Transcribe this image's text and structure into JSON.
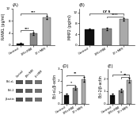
{
  "chart_data": [
    {
      "type": "bar",
      "title": "(A)",
      "ylabel": "RANKL (pg/ml)",
      "categories": [
        "Control",
        "LM+MM",
        "LY+MM"
      ],
      "values": [
        0.6,
        3.8,
        9.0
      ],
      "errors": [
        0.15,
        0.35,
        0.55
      ],
      "colors": [
        "#111111",
        "#888888",
        "#aaaaaa"
      ],
      "ylim": [
        0,
        12
      ],
      "yticks": [
        0,
        4,
        8,
        12
      ],
      "grid": false,
      "annotations": [
        {
          "from": "Control",
          "to": "LM+MM",
          "y": 4.8,
          "label": "***"
        },
        {
          "from": "Control",
          "to": "LY+MM",
          "y": 10.2,
          "label": "***"
        }
      ]
    },
    {
      "type": "bar",
      "title": "(B)",
      "ylabel": "MMP2 (pg/ml)",
      "categories": [
        "Control",
        "LM+MM",
        "LY+MM"
      ],
      "values": [
        5.8,
        6.0,
        9.5
      ],
      "errors": [
        0.35,
        0.4,
        0.5
      ],
      "colors": [
        "#111111",
        "#888888",
        "#aaaaaa"
      ],
      "ylim": [
        0,
        13.5
      ],
      "yticks": [
        0,
        4,
        8,
        12
      ],
      "grid": false,
      "annotations": [
        {
          "from": "LM+MM",
          "to": "LY+MM",
          "y": 10.5,
          "label": "****"
        },
        {
          "from": "Control",
          "to": "LY+MM",
          "y": 11.5,
          "label": "LY S"
        }
      ]
    },
    {
      "type": "blot",
      "categories": [
        "Control",
        "LM+MM",
        "LY+MM"
      ],
      "rows": [
        "Bcl-xL",
        "Bcl-2",
        "β-actin"
      ],
      "colors": [
        "#505050",
        "#606060",
        "#707070"
      ]
    },
    {
      "type": "bar",
      "title": "(D)",
      "ylabel": "Bcl-xL/β-actin",
      "categories": [
        "Control",
        "LM+MM",
        "LY+MM"
      ],
      "values": [
        0.75,
        1.35,
        2.1
      ],
      "errors": [
        0.1,
        0.14,
        0.2
      ],
      "colors": [
        "#111111",
        "#888888",
        "#aaaaaa"
      ],
      "ylim": [
        0,
        3.0
      ],
      "yticks": [
        0,
        1,
        2,
        3
      ],
      "grid": false,
      "annotations": [
        {
          "from": "Control",
          "to": "LM+MM",
          "y": 1.65,
          "label": "*"
        },
        {
          "from": "Control",
          "to": "LY+MM",
          "y": 2.45,
          "label": "**"
        }
      ]
    },
    {
      "type": "bar",
      "title": "(E)",
      "ylabel": "Bcl-2/β-actin",
      "categories": [
        "Control",
        "LM+MM",
        "LY+MM"
      ],
      "values": [
        0.7,
        1.05,
        1.9
      ],
      "errors": [
        0.09,
        0.12,
        0.18
      ],
      "colors": [
        "#111111",
        "#888888",
        "#aaaaaa"
      ],
      "ylim": [
        0,
        2.8
      ],
      "yticks": [
        0,
        1,
        2
      ],
      "grid": false,
      "annotations": [
        {
          "from": "LM+MM",
          "to": "LY+MM",
          "y": 2.15,
          "label": "**"
        },
        {
          "from": "Control",
          "to": "LY+MM",
          "y": 2.35,
          "label": "*"
        }
      ]
    }
  ]
}
